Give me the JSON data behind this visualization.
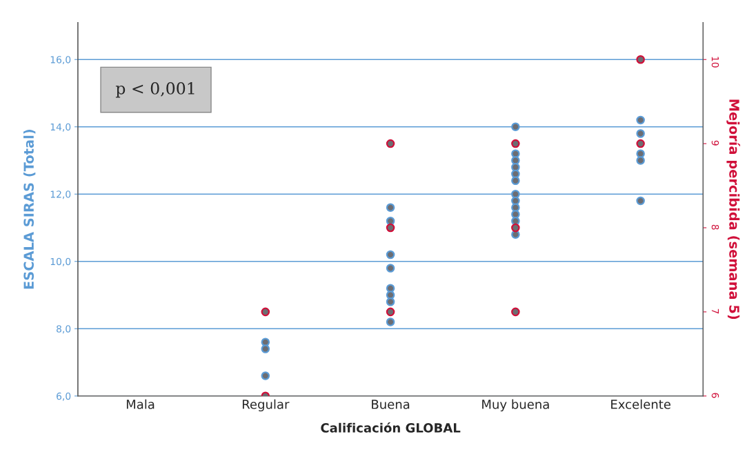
{
  "chart_data": {
    "type": "scatter",
    "xlabel": "Calificación GLOBAL",
    "ylabel": "ESCALA SIRAS (Total)",
    "y2label": "Mejoría percibida (semana 5)",
    "categories": [
      "Mala",
      "Regular",
      "Buena",
      "Muy buena",
      "Excelente"
    ],
    "series": [
      {
        "color": "#5b9bd5",
        "x": [
          "Regular",
          "Regular",
          "Regular",
          "Buena",
          "Buena",
          "Buena",
          "Buena",
          "Buena",
          "Buena",
          "Buena",
          "Buena",
          "Muy buena",
          "Muy buena",
          "Muy buena",
          "Muy buena",
          "Muy buena",
          "Muy buena",
          "Muy buena",
          "Muy buena",
          "Muy buena",
          "Muy buena",
          "Muy buena",
          "Muy buena",
          "Excelente",
          "Excelente",
          "Excelente",
          "Excelente",
          "Excelente",
          "Excelente",
          "Excelente"
        ],
        "values": [
          7.6,
          7.4,
          6.6,
          11.6,
          11.2,
          10.2,
          9.8,
          9.2,
          9.0,
          8.8,
          8.2,
          14.0,
          13.2,
          13.0,
          12.8,
          12.6,
          12.4,
          12.0,
          11.8,
          11.6,
          11.4,
          11.2,
          10.8,
          14.2,
          13.8,
          null,
          null,
          13.2,
          13.0,
          11.8
        ]
      },
      {
        "color": "#d0103a",
        "axis": "y2",
        "x": [
          "Regular",
          "Regular",
          "Buena",
          "Buena",
          "Buena",
          "Muy buena",
          "Muy buena",
          "Muy buena",
          "Excelente",
          "Excelente"
        ],
        "values": [
          7,
          6,
          9,
          8,
          7,
          9,
          8,
          7,
          10,
          9
        ]
      }
    ],
    "ylim": [
      6,
      17.1
    ],
    "yticks": [
      {
        "value": 6,
        "label": "6,0"
      },
      {
        "value": 8,
        "label": "8,0"
      },
      {
        "value": 10,
        "label": "10,0"
      },
      {
        "value": 12,
        "label": "12,0"
      },
      {
        "value": 14,
        "label": "14,0"
      },
      {
        "value": 16,
        "label": "16,0"
      }
    ],
    "y2lim": [
      6,
      10.44
    ],
    "y2ticks": [
      6,
      7,
      8,
      9,
      10
    ],
    "grid": "y",
    "marker": "circle",
    "legend": false,
    "annotations": [
      "p < 0,001"
    ]
  }
}
